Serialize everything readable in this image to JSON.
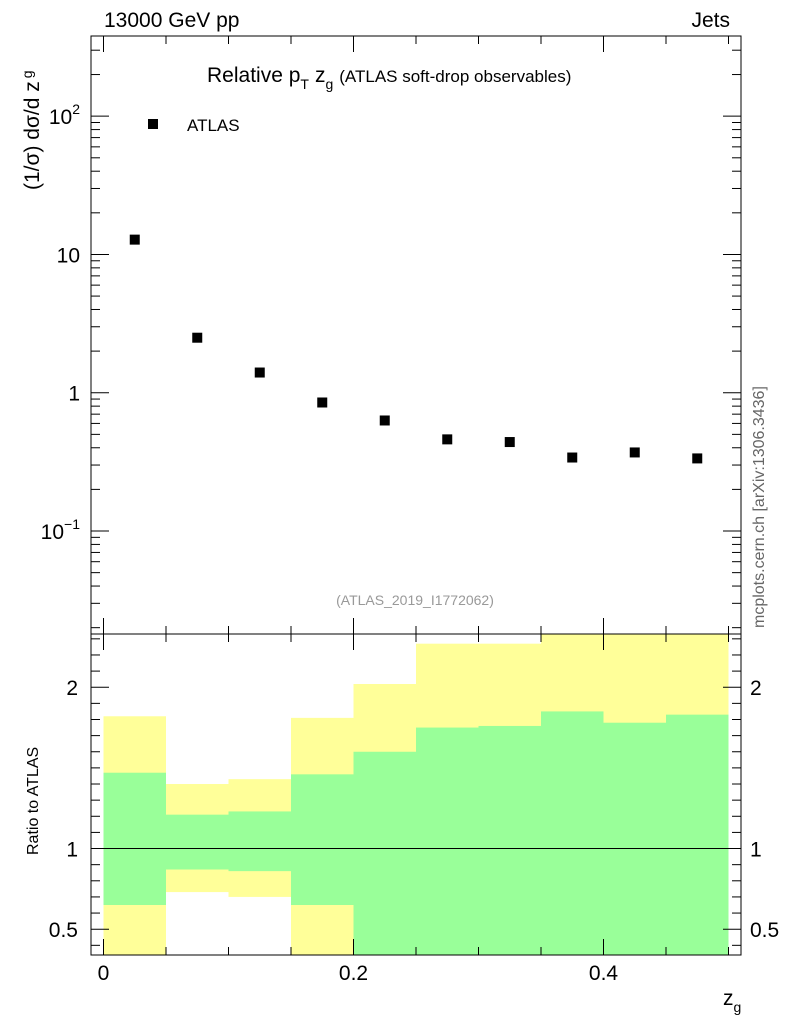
{
  "header": {
    "left": "13000 GeV pp",
    "right": "Jets"
  },
  "side_label": "mcplots.cern.ch [arXiv:1306.3436]",
  "chart_data": {
    "type": "scatter",
    "title_main": "Relative p",
    "title_sub_T": "T",
    "title_zg": "z",
    "title_sub_g": "g",
    "title_rest": "(ATLAS soft-drop observables)",
    "analysis_id": "(ATLAS_2019_I1772062)",
    "xlabel": "z",
    "xlabel_sub": "g",
    "ylabel": "(1/σ) dσ/d z",
    "ylabel_sub": "g",
    "ratio_ylabel": "Ratio to ATLAS",
    "legend": [
      {
        "label": "ATLAS",
        "marker": "square"
      }
    ],
    "xlim": [
      -0.01,
      0.51
    ],
    "ylim_log": [
      0.018,
      380
    ],
    "ratio_ylim": [
      0.34,
      2.33
    ],
    "x_ticks": [
      0,
      0.2,
      0.4
    ],
    "x_tick_labels": [
      "0",
      "0.2",
      "0.4"
    ],
    "y_ticks_main": [
      {
        "value": 100,
        "label": "10",
        "sup": "2"
      },
      {
        "value": 10,
        "label": "10",
        "sup": ""
      },
      {
        "value": 1,
        "label": "1",
        "sup": ""
      },
      {
        "value": 0.1,
        "label": "10",
        "sup": "−1"
      }
    ],
    "y_ticks_ratio": [
      {
        "value": 2,
        "label": "2"
      },
      {
        "value": 1,
        "label": "1"
      },
      {
        "value": 0.5,
        "label": "0.5"
      }
    ],
    "points": [
      {
        "x": 0.025,
        "y": 12.8
      },
      {
        "x": 0.075,
        "y": 2.5
      },
      {
        "x": 0.125,
        "y": 1.4
      },
      {
        "x": 0.175,
        "y": 0.85
      },
      {
        "x": 0.225,
        "y": 0.63
      },
      {
        "x": 0.275,
        "y": 0.46
      },
      {
        "x": 0.325,
        "y": 0.44
      },
      {
        "x": 0.375,
        "y": 0.34
      },
      {
        "x": 0.425,
        "y": 0.37
      },
      {
        "x": 0.475,
        "y": 0.335
      }
    ],
    "ratio_bands": [
      {
        "x0": 0.0,
        "x1": 0.05,
        "yellow": [
          0.33,
          1.82
        ],
        "green": [
          0.65,
          1.47
        ]
      },
      {
        "x0": 0.05,
        "x1": 0.1,
        "yellow": [
          0.73,
          1.4
        ],
        "green": [
          0.87,
          1.21
        ]
      },
      {
        "x0": 0.1,
        "x1": 0.15,
        "yellow": [
          0.7,
          1.43
        ],
        "green": [
          0.86,
          1.23
        ]
      },
      {
        "x0": 0.15,
        "x1": 0.2,
        "yellow": [
          0.33,
          1.81
        ],
        "green": [
          0.65,
          1.46
        ]
      },
      {
        "x0": 0.2,
        "x1": 0.25,
        "yellow": [
          0.48,
          2.02
        ],
        "green": [
          0.33,
          1.6
        ]
      },
      {
        "x0": 0.25,
        "x1": 0.3,
        "yellow": [
          0.33,
          2.27
        ],
        "green": [
          0.33,
          1.75
        ]
      },
      {
        "x0": 0.3,
        "x1": 0.35,
        "yellow": [
          0.33,
          2.27
        ],
        "green": [
          0.33,
          1.76
        ]
      },
      {
        "x0": 0.35,
        "x1": 0.4,
        "yellow": [
          0.33,
          2.33
        ],
        "green": [
          0.33,
          1.85
        ]
      },
      {
        "x0": 0.4,
        "x1": 0.45,
        "yellow": [
          0.33,
          2.33
        ],
        "green": [
          0.33,
          1.78
        ]
      },
      {
        "x0": 0.45,
        "x1": 0.5,
        "yellow": [
          0.33,
          2.33
        ],
        "green": [
          0.33,
          1.83
        ]
      }
    ],
    "colors": {
      "yellow": "#ffff99",
      "green": "#99ff99",
      "marker": "#000000"
    }
  }
}
